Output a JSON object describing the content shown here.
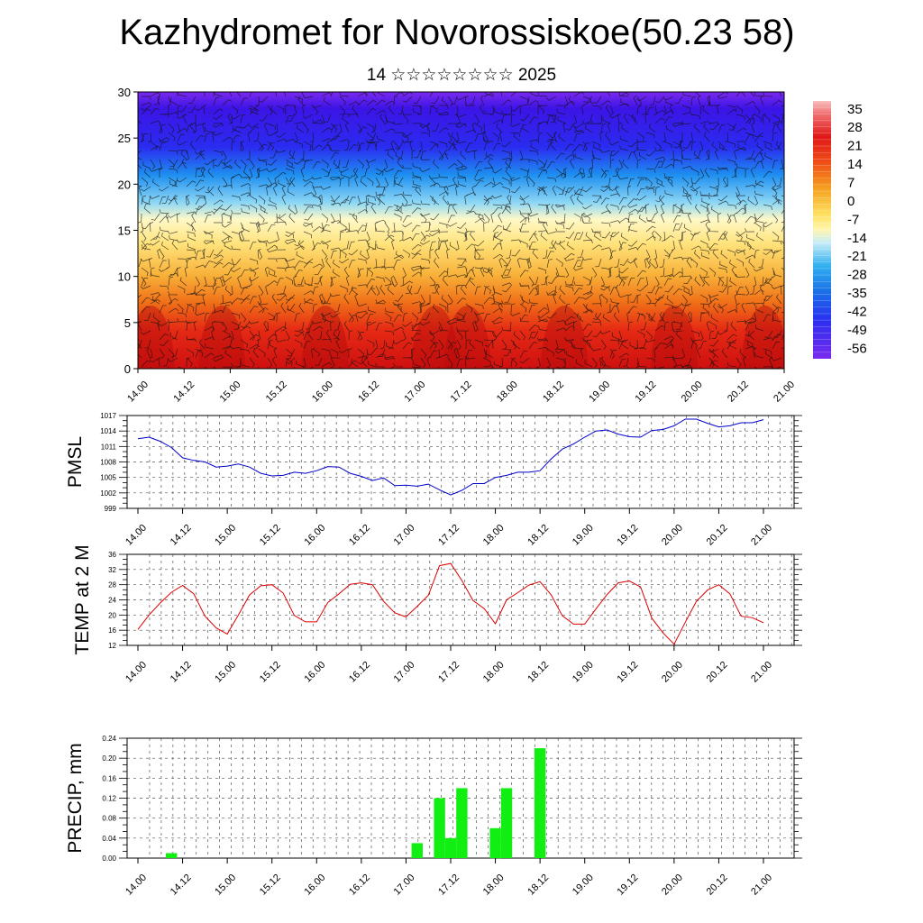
{
  "header": {
    "title": "Kazhydromet for Novorossiskoe(50.23 58)",
    "subtitle": "14 ☆☆☆☆☆☆☆☆ 2025"
  },
  "chart_data": [
    {
      "type": "heatmap",
      "name": "cross-section",
      "ylim": [
        0,
        30
      ],
      "y_ticks": [
        "0",
        "5",
        "10",
        "15",
        "20",
        "25",
        "30"
      ],
      "x_ticks": [
        "14.00",
        "14.12",
        "15.00",
        "15.12",
        "16.00",
        "16.12",
        "17.00",
        "17.12",
        "18.00",
        "18.12",
        "19.00",
        "19.12",
        "20.00",
        "20.12",
        "21.00"
      ],
      "colorbar_labels": [
        "35",
        "28",
        "21",
        "14",
        "7",
        "0",
        "-7",
        "-14",
        "-21",
        "-28",
        "-35",
        "-42",
        "-49",
        "-56"
      ],
      "colorbar_range": [
        -60,
        38
      ],
      "colors": {
        "cold": "#3a10e8",
        "cool": "#2aa8f0",
        "mild": "#fff4a0",
        "warm": "#f5a020",
        "hot": "#e01818"
      },
      "wind_barbs": true
    },
    {
      "type": "line",
      "ylabel": "PMSL",
      "ylim": [
        999,
        1017
      ],
      "y_ticks": [
        "999",
        "1002",
        "1005",
        "1008",
        "1011",
        "1014",
        "1017"
      ],
      "x_ticks": [
        "14.00",
        "14.12",
        "15.00",
        "15.12",
        "16.00",
        "16.12",
        "17.00",
        "17.12",
        "18.00",
        "18.12",
        "19.00",
        "19.12",
        "20.00",
        "20.12",
        "21.00"
      ],
      "line_color": "#0000cc",
      "series": [
        {
          "values": [
            1012.5,
            1012.8,
            1012.0,
            1010.8,
            1008.8,
            1008.3,
            1008.0,
            1007.0,
            1007.2,
            1007.6,
            1007.0,
            1005.8,
            1005.3,
            1005.4,
            1006.0,
            1005.8,
            1006.3,
            1007.1,
            1007.0,
            1005.8,
            1005.2,
            1004.4,
            1004.9,
            1003.4,
            1003.5,
            1003.3,
            1003.7,
            1002.6,
            1001.6,
            1002.5,
            1003.8,
            1003.8,
            1005.0,
            1005.4,
            1006.0,
            1006.0,
            1006.3,
            1008.6,
            1010.5,
            1011.5,
            1012.8,
            1014.0,
            1014.2,
            1013.4,
            1012.9,
            1012.8,
            1014.1,
            1014.3,
            1015.0,
            1016.3,
            1016.3,
            1015.5,
            1014.8,
            1015.0,
            1015.6,
            1015.6,
            1016.2
          ]
        }
      ]
    },
    {
      "type": "line",
      "ylabel": "TEMP at 2 M",
      "ylim": [
        12,
        36
      ],
      "y_ticks": [
        "12",
        "16",
        "20",
        "24",
        "28",
        "32",
        "36"
      ],
      "x_ticks": [
        "14.00",
        "14.12",
        "15.00",
        "15.12",
        "16.00",
        "16.12",
        "17.00",
        "17.12",
        "18.00",
        "18.12",
        "19.00",
        "19.12",
        "20.00",
        "20.12",
        "21.00"
      ],
      "line_color": "#dd0000",
      "series": [
        {
          "values": [
            16.2,
            20.0,
            23.2,
            26.0,
            27.8,
            25.6,
            19.7,
            16.6,
            15.0,
            20.0,
            25.3,
            27.7,
            28.0,
            25.8,
            19.9,
            18.2,
            18.2,
            23.3,
            25.6,
            28.1,
            28.5,
            28.0,
            23.6,
            20.6,
            19.5,
            22.3,
            25.2,
            33.0,
            33.6,
            29.1,
            23.8,
            21.7,
            17.7,
            24.0,
            25.9,
            27.9,
            28.8,
            25.3,
            19.8,
            17.6,
            17.6,
            21.6,
            25.4,
            28.5,
            29.0,
            27.4,
            19.2,
            15.3,
            12.3,
            18.1,
            23.6,
            26.6,
            28.0,
            25.6,
            19.7,
            19.3,
            18.0
          ]
        }
      ]
    },
    {
      "type": "bar",
      "ylabel": "PRECIP, mm",
      "ylim": [
        0,
        0.24
      ],
      "y_ticks": [
        "0.00",
        "0.04",
        "0.08",
        "0.12",
        "0.16",
        "0.20",
        "0.24"
      ],
      "x_ticks": [
        "14.00",
        "14.12",
        "15.00",
        "15.12",
        "16.00",
        "16.12",
        "17.00",
        "17.12",
        "18.00",
        "18.12",
        "19.00",
        "19.12",
        "20.00",
        "20.12",
        "21.00"
      ],
      "bar_color": "#11ee11",
      "series": [
        {
          "values": [
            0,
            0,
            0,
            0.01,
            0,
            0,
            0,
            0,
            0,
            0,
            0,
            0,
            0,
            0,
            0,
            0,
            0,
            0,
            0,
            0,
            0,
            0,
            0,
            0,
            0,
            0.03,
            0,
            0.12,
            0.04,
            0.14,
            0,
            0,
            0.06,
            0.14,
            0,
            0,
            0.22,
            0,
            0,
            0,
            0,
            0,
            0,
            0,
            0,
            0,
            0,
            0,
            0,
            0,
            0,
            0,
            0,
            0,
            0,
            0,
            0
          ]
        }
      ]
    }
  ]
}
